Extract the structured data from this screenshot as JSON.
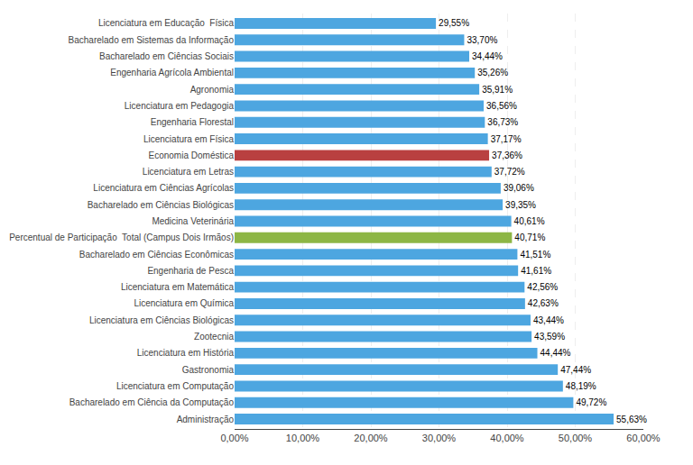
{
  "chart_data": {
    "type": "bar",
    "orientation": "horizontal",
    "categories": [
      "Administração",
      "Bacharelado em Ciência da Computação",
      "Licenciatura em Computação",
      "Gastronomia",
      "Licenciatura em História",
      "Zootecnia",
      "Licenciatura em Ciências Biológicas",
      "Licenciatura em Química",
      "Licenciatura em Matemática",
      "Engenharia de Pesca",
      "Bacharelado em Ciências Econômicas",
      "Percentual de Participação  Total (Campus Dois Irmãos)",
      "Medicina Veterinária",
      "Bacharelado em Ciências Biológicas",
      "Licenciatura em Ciências Agrícolas",
      "Licenciatura em Letras",
      "Economia Doméstica",
      "Licenciatura em Física",
      "Engenharia Florestal",
      "Licenciatura em Pedagogia",
      "Agronomia",
      "Engenharia Agrícola Ambiental",
      "Bacharelado em Ciências Sociais",
      "Bacharelado em Sistemas da Informação",
      "Licenciatura em Educação  Física"
    ],
    "values": [
      55.63,
      49.72,
      48.19,
      47.44,
      44.44,
      43.59,
      43.44,
      42.63,
      42.56,
      41.61,
      41.51,
      40.71,
      40.61,
      39.35,
      39.06,
      37.72,
      37.36,
      37.17,
      36.73,
      36.56,
      35.91,
      35.26,
      34.44,
      33.7,
      29.55
    ],
    "value_labels": [
      "55,63%",
      "49,72%",
      "48,19%",
      "47,44%",
      "44,44%",
      "43,59%",
      "43,44%",
      "42,63%",
      "42,56%",
      "41,61%",
      "41,51%",
      "40,71%",
      "40,61%",
      "39,35%",
      "39,06%",
      "37,72%",
      "37,36%",
      "37,17%",
      "36,73%",
      "36,56%",
      "35,91%",
      "35,26%",
      "34,44%",
      "33,70%",
      "29,55%"
    ],
    "data_labels": true,
    "colors": [
      "#4da6e0",
      "#4da6e0",
      "#4da6e0",
      "#4da6e0",
      "#4da6e0",
      "#4da6e0",
      "#4da6e0",
      "#4da6e0",
      "#4da6e0",
      "#4da6e0",
      "#4da6e0",
      "#8db645",
      "#4da6e0",
      "#4da6e0",
      "#4da6e0",
      "#4da6e0",
      "#b94040",
      "#4da6e0",
      "#4da6e0",
      "#4da6e0",
      "#4da6e0",
      "#4da6e0",
      "#4da6e0",
      "#4da6e0",
      "#4da6e0"
    ],
    "xlim": [
      0,
      60
    ],
    "xticks": [
      {
        "value": 0,
        "label": "0,00%"
      },
      {
        "value": 10,
        "label": "10,00%"
      },
      {
        "value": 20,
        "label": "20,00%"
      },
      {
        "value": 30,
        "label": "30,00%"
      },
      {
        "value": 40,
        "label": "40,00%"
      },
      {
        "value": 50,
        "label": "50,00%"
      },
      {
        "value": 60,
        "label": "60,00%"
      }
    ],
    "grid": true
  }
}
